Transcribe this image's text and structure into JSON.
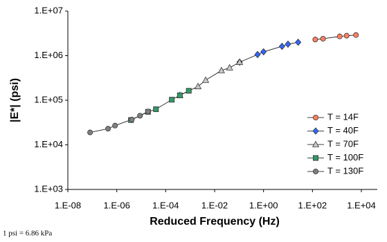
{
  "chart_data": {
    "type": "scatter",
    "xlabel": "Reduced Frequency (Hz)",
    "ylabel": "|E*| (psi)",
    "note": "1 psi = 6.86 kPa",
    "xscale": "log",
    "yscale": "log",
    "xlim": [
      1e-08,
      10000.0
    ],
    "ylim": [
      1000,
      10000000
    ],
    "xticks": [
      {
        "value": 1e-08,
        "label": "1.E-08"
      },
      {
        "value": 1e-06,
        "label": "1.E-06"
      },
      {
        "value": 0.0001,
        "label": "1.E-04"
      },
      {
        "value": 0.01,
        "label": "1.E-02"
      },
      {
        "value": 1,
        "label": "1.E+00"
      },
      {
        "value": 100,
        "label": "1.E+02"
      },
      {
        "value": 10000,
        "label": "1.E+04"
      }
    ],
    "yticks": [
      {
        "value": 1000,
        "label": "1.E+03"
      },
      {
        "value": 10000,
        "label": "1.E+04"
      },
      {
        "value": 100000,
        "label": "1.E+05"
      },
      {
        "value": 1000000,
        "label": "1.E+06"
      },
      {
        "value": 10000000,
        "label": "1.E+07"
      }
    ],
    "legend": "right",
    "series": [
      {
        "name": "T = 14F",
        "color": "#ff8060",
        "marker": "circle",
        "x": [
          130,
          270,
          1300,
          2500,
          6000
        ],
        "values": [
          2300000,
          2400000,
          2700000,
          2800000,
          2900000
        ]
      },
      {
        "name": "T = 40F",
        "color": "#3366ff",
        "marker": "diamond",
        "x": [
          0.105,
          0.57,
          1.0,
          5.7,
          10,
          26
        ],
        "values": [
          714000,
          1060000,
          1220000,
          1620000,
          1810000,
          2000000
        ]
      },
      {
        "name": "T = 70F",
        "color": "#c8c8c8",
        "marker": "triangle",
        "x": [
          0.00038,
          0.0021,
          0.0043,
          0.019,
          0.041,
          0.105
        ],
        "values": [
          129000,
          204000,
          282000,
          464000,
          536000,
          714000
        ]
      },
      {
        "name": "T = 100F",
        "color": "#339966",
        "marker": "square",
        "x": [
          3.8e-06,
          1.9e-05,
          4e-05,
          0.000178,
          0.00038,
          0.00088
        ],
        "values": [
          36000,
          55000,
          63000,
          103000,
          129000,
          163000
        ]
      },
      {
        "name": "T = 130F",
        "color": "#808080",
        "marker": "circle",
        "x": [
          8.1e-08,
          4.4e-07,
          8.5e-07,
          4.1e-06,
          8.9e-06,
          1.9e-05
        ],
        "values": [
          19000,
          23000,
          27000,
          37000,
          45000,
          56000
        ]
      }
    ]
  }
}
